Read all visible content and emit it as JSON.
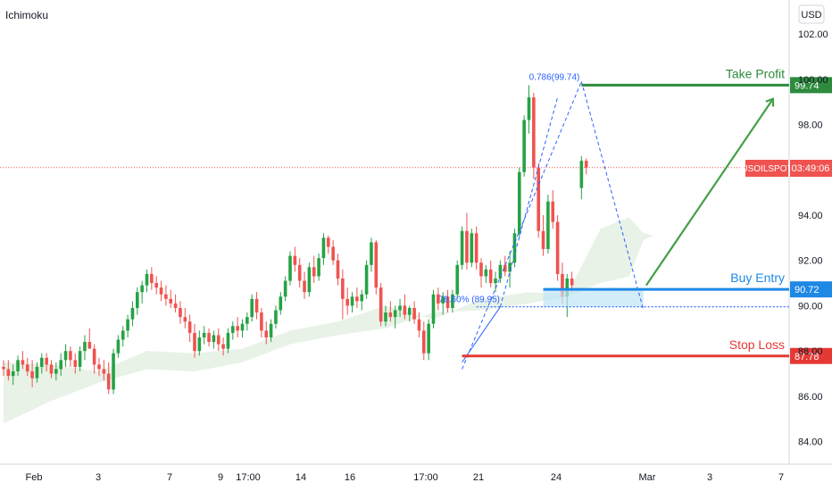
{
  "indicator_label": "Ichimoku",
  "currency_label": "USD",
  "symbol_tag": "USOILSPOT",
  "countdown_tag": "03:49:06",
  "colors": {
    "up": "#26a245",
    "down": "#ef5350",
    "cloud": "#e6f1e4",
    "take_profit": "#2e8b3e",
    "buy_entry": "#1e88e5",
    "stop_loss": "#e53935",
    "fib": "#2962ff",
    "arrow": "#43a047"
  },
  "chart_data": {
    "type": "candlestick",
    "x_ticks": [
      "Feb",
      "3",
      "7",
      "9",
      "17:00",
      "14",
      "16",
      "17:00",
      "21",
      "24",
      "Mar",
      "3",
      "7"
    ],
    "y_ticks": [
      "84.00",
      "86.00",
      "88.00",
      "90.00",
      "92.00",
      "94.00",
      "96.00",
      "98.00",
      "100.00",
      "102.00"
    ],
    "ylim": [
      83.0,
      103.5
    ],
    "current_price": 96.1,
    "levels": [
      {
        "name": "Take Profit",
        "value": 99.74,
        "label": "99.74"
      },
      {
        "name": "Buy Entry",
        "value": 90.72,
        "label": "90.72"
      },
      {
        "name": "Stop Loss",
        "value": 87.78,
        "label": "87.78"
      }
    ],
    "fib_annotations": [
      {
        "label": "0.786(99.74)",
        "value": 99.74
      },
      {
        "label": "78.60% (89.95)",
        "value": 89.95
      }
    ],
    "candles": [
      [
        87.3,
        87.6,
        86.9,
        87.2
      ],
      [
        87.2,
        87.6,
        86.7,
        86.9
      ],
      [
        86.9,
        87.4,
        86.5,
        87.1
      ],
      [
        87.1,
        87.8,
        86.9,
        87.6
      ],
      [
        87.6,
        88.0,
        87.2,
        87.4
      ],
      [
        87.4,
        87.7,
        86.9,
        87.1
      ],
      [
        87.1,
        87.6,
        86.4,
        86.8
      ],
      [
        86.8,
        87.5,
        86.6,
        87.3
      ],
      [
        87.3,
        87.9,
        87.0,
        87.7
      ],
      [
        87.7,
        87.9,
        87.1,
        87.4
      ],
      [
        87.4,
        87.6,
        86.8,
        87.0
      ],
      [
        87.0,
        87.5,
        86.7,
        87.2
      ],
      [
        87.2,
        87.9,
        86.9,
        87.6
      ],
      [
        87.6,
        88.3,
        87.3,
        88.0
      ],
      [
        88.0,
        88.2,
        87.3,
        87.6
      ],
      [
        87.6,
        87.9,
        87.0,
        87.3
      ],
      [
        87.3,
        88.2,
        87.1,
        88.0
      ],
      [
        88.0,
        88.7,
        87.6,
        88.4
      ],
      [
        88.4,
        89.0,
        88.1,
        88.1
      ],
      [
        88.1,
        88.3,
        87.0,
        87.4
      ],
      [
        87.4,
        87.7,
        86.9,
        87.2
      ],
      [
        87.2,
        87.6,
        86.7,
        87.0
      ],
      [
        87.0,
        87.5,
        86.1,
        86.3
      ],
      [
        86.3,
        88.1,
        86.1,
        87.9
      ],
      [
        87.9,
        88.7,
        87.7,
        88.5
      ],
      [
        88.5,
        89.1,
        88.2,
        88.9
      ],
      [
        88.9,
        89.6,
        88.6,
        89.4
      ],
      [
        89.4,
        90.2,
        89.1,
        89.9
      ],
      [
        89.9,
        90.8,
        89.6,
        90.6
      ],
      [
        90.6,
        91.1,
        90.1,
        90.9
      ],
      [
        90.9,
        91.6,
        90.6,
        91.4
      ],
      [
        91.4,
        91.7,
        90.7,
        91.0
      ],
      [
        91.0,
        91.3,
        90.5,
        90.8
      ],
      [
        90.8,
        91.1,
        90.2,
        90.5
      ],
      [
        90.5,
        90.9,
        90.0,
        90.3
      ],
      [
        90.3,
        90.7,
        89.9,
        90.1
      ],
      [
        90.1,
        90.5,
        89.7,
        89.9
      ],
      [
        89.9,
        90.2,
        89.2,
        89.5
      ],
      [
        89.5,
        89.9,
        89.0,
        89.3
      ],
      [
        89.3,
        89.6,
        88.4,
        88.8
      ],
      [
        88.8,
        89.2,
        87.7,
        88.0
      ],
      [
        88.0,
        88.9,
        87.8,
        88.6
      ],
      [
        88.6,
        89.1,
        88.3,
        88.8
      ],
      [
        88.8,
        89.0,
        88.2,
        88.4
      ],
      [
        88.4,
        88.9,
        88.1,
        88.7
      ],
      [
        88.7,
        89.0,
        88.0,
        88.3
      ],
      [
        88.3,
        88.6,
        87.8,
        88.1
      ],
      [
        88.1,
        89.0,
        87.9,
        88.8
      ],
      [
        88.8,
        89.3,
        88.5,
        89.1
      ],
      [
        89.1,
        89.5,
        88.6,
        88.9
      ],
      [
        88.9,
        89.4,
        88.6,
        89.2
      ],
      [
        89.2,
        89.7,
        88.9,
        89.5
      ],
      [
        89.5,
        90.5,
        89.3,
        90.3
      ],
      [
        90.3,
        90.6,
        89.4,
        89.7
      ],
      [
        89.7,
        89.9,
        88.6,
        88.9
      ],
      [
        88.9,
        89.3,
        88.3,
        88.6
      ],
      [
        88.6,
        89.4,
        88.4,
        89.2
      ],
      [
        89.2,
        90.0,
        89.0,
        89.8
      ],
      [
        89.8,
        90.6,
        89.6,
        90.4
      ],
      [
        90.4,
        91.3,
        90.2,
        91.1
      ],
      [
        91.1,
        92.4,
        90.9,
        92.2
      ],
      [
        92.2,
        92.6,
        91.5,
        91.8
      ],
      [
        91.8,
        92.1,
        90.8,
        91.1
      ],
      [
        91.1,
        91.5,
        90.3,
        90.6
      ],
      [
        90.6,
        91.9,
        90.4,
        91.7
      ],
      [
        91.7,
        92.2,
        91.0,
        91.3
      ],
      [
        91.3,
        92.3,
        91.1,
        92.1
      ],
      [
        92.1,
        93.2,
        91.8,
        93.0
      ],
      [
        93.0,
        93.1,
        92.3,
        92.6
      ],
      [
        92.6,
        92.9,
        91.8,
        92.0
      ],
      [
        92.0,
        92.3,
        90.9,
        91.2
      ],
      [
        91.2,
        91.6,
        89.4,
        90.3
      ],
      [
        90.3,
        90.8,
        89.6,
        90.0
      ],
      [
        90.0,
        90.6,
        89.7,
        90.4
      ],
      [
        90.4,
        90.8,
        89.9,
        90.2
      ],
      [
        90.2,
        90.7,
        89.8,
        90.5
      ],
      [
        90.5,
        92.0,
        90.3,
        91.8
      ],
      [
        91.8,
        93.0,
        91.5,
        92.8
      ],
      [
        92.8,
        92.9,
        90.5,
        90.8
      ],
      [
        90.8,
        91.0,
        89.1,
        89.3
      ],
      [
        89.3,
        90.0,
        89.1,
        89.7
      ],
      [
        89.7,
        90.2,
        89.3,
        89.5
      ],
      [
        89.5,
        90.0,
        89.0,
        89.8
      ],
      [
        89.8,
        90.3,
        89.5,
        90.0
      ],
      [
        90.0,
        90.5,
        89.4,
        89.6
      ],
      [
        89.6,
        90.0,
        89.3,
        89.9
      ],
      [
        89.9,
        90.2,
        89.2,
        89.4
      ],
      [
        89.4,
        89.7,
        88.6,
        88.9
      ],
      [
        88.9,
        89.3,
        87.6,
        87.9
      ],
      [
        87.9,
        89.4,
        87.6,
        89.2
      ],
      [
        89.2,
        90.7,
        89.0,
        90.5
      ],
      [
        90.5,
        90.8,
        89.8,
        90.1
      ],
      [
        90.1,
        90.6,
        89.6,
        90.4
      ],
      [
        90.4,
        90.7,
        89.7,
        89.9
      ],
      [
        89.9,
        90.7,
        89.7,
        90.5
      ],
      [
        90.5,
        92.0,
        90.3,
        91.8
      ],
      [
        91.8,
        93.5,
        91.6,
        93.3
      ],
      [
        93.3,
        94.1,
        91.6,
        91.9
      ],
      [
        91.9,
        93.4,
        91.7,
        93.2
      ],
      [
        93.2,
        93.5,
        91.6,
        91.9
      ],
      [
        91.9,
        92.1,
        90.8,
        91.3
      ],
      [
        91.3,
        91.8,
        91.0,
        91.6
      ],
      [
        91.6,
        92.0,
        90.8,
        91.0
      ],
      [
        91.0,
        91.5,
        90.6,
        91.2
      ],
      [
        91.2,
        92.0,
        91.0,
        91.8
      ],
      [
        91.8,
        92.2,
        91.3,
        91.5
      ],
      [
        91.5,
        92.4,
        90.8,
        91.9
      ],
      [
        91.9,
        93.4,
        91.7,
        93.2
      ],
      [
        93.2,
        96.1,
        93.0,
        95.9
      ],
      [
        95.9,
        98.4,
        95.7,
        98.2
      ],
      [
        98.2,
        99.74,
        97.6,
        99.2
      ],
      [
        99.2,
        99.4,
        95.6,
        96.1
      ],
      [
        96.1,
        96.3,
        93.0,
        93.3
      ],
      [
        93.3,
        94.0,
        92.2,
        92.5
      ],
      [
        92.5,
        94.9,
        92.3,
        94.6
      ],
      [
        94.6,
        95.1,
        93.4,
        93.7
      ],
      [
        93.7,
        94.0,
        91.1,
        91.4
      ],
      [
        91.4,
        91.9,
        90.1,
        90.4
      ],
      [
        90.4,
        91.4,
        89.5,
        91.2
      ],
      [
        91.2,
        91.5,
        90.6,
        90.9
      ],
      [
        null,
        null,
        null,
        null
      ],
      [
        95.2,
        96.6,
        94.7,
        96.4
      ],
      [
        96.4,
        96.5,
        95.8,
        96.1
      ]
    ],
    "cloud_top": [
      [
        0,
        87.5
      ],
      [
        10,
        87.4
      ],
      [
        20,
        87.1
      ],
      [
        30,
        88.0
      ],
      [
        40,
        87.9
      ],
      [
        50,
        88.1
      ],
      [
        60,
        88.9
      ],
      [
        70,
        89.3
      ],
      [
        80,
        90.0
      ],
      [
        90,
        89.4
      ],
      [
        100,
        90.3
      ],
      [
        110,
        90.6
      ],
      [
        118,
        90.5
      ],
      [
        125,
        93.4
      ],
      [
        131,
        93.9
      ],
      [
        134,
        93.2
      ],
      [
        136,
        93.1
      ]
    ],
    "cloud_bottom": [
      [
        0,
        84.8
      ],
      [
        10,
        85.8
      ],
      [
        20,
        86.6
      ],
      [
        30,
        87.2
      ],
      [
        40,
        87.1
      ],
      [
        50,
        87.5
      ],
      [
        60,
        88.3
      ],
      [
        70,
        88.7
      ],
      [
        80,
        89.0
      ],
      [
        90,
        89.7
      ],
      [
        100,
        89.8
      ],
      [
        110,
        90.1
      ],
      [
        118,
        90.4
      ],
      [
        125,
        91.0
      ],
      [
        131,
        91.3
      ],
      [
        134,
        92.9
      ],
      [
        136,
        93.1
      ]
    ]
  }
}
